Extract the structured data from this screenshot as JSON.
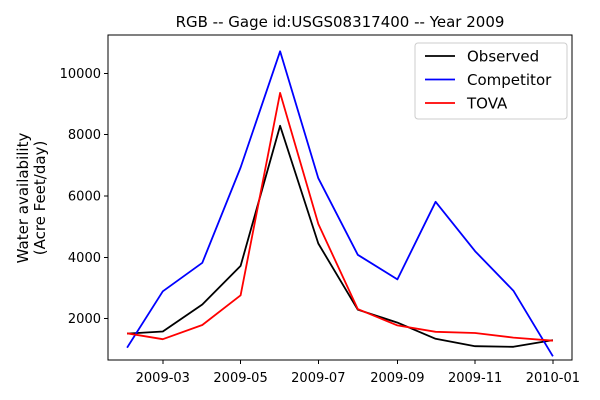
{
  "chart_data": {
    "type": "line",
    "title": "RGB -- Gage id:USGS08317400 -- Year 2009",
    "ylabel_lines": [
      "Water availability",
      "(Acre Feet/day)"
    ],
    "xlabel": "",
    "x": [
      "2009-02",
      "2009-03",
      "2009-04",
      "2009-05",
      "2009-06",
      "2009-07",
      "2009-08",
      "2009-09",
      "2009-10",
      "2009-11",
      "2009-12",
      "2010-01"
    ],
    "x_ticks": [
      "2009-03",
      "2009-05",
      "2009-07",
      "2009-09",
      "2009-11",
      "2010-01"
    ],
    "y_ticks": [
      2000,
      4000,
      6000,
      8000,
      10000
    ],
    "ylim": [
      650,
      11250
    ],
    "xlim": [
      "2009-01-17",
      "2010-01-16"
    ],
    "grid": false,
    "legend_position": "top-right",
    "series": [
      {
        "name": "Observed",
        "color": "#000000",
        "values": [
          1510,
          1580,
          2460,
          3720,
          8290,
          4450,
          2290,
          1870,
          1340,
          1100,
          1080,
          1300
        ]
      },
      {
        "name": "Competitor",
        "color": "#0000ff",
        "values": [
          1050,
          2890,
          3820,
          6930,
          10720,
          6580,
          4080,
          3280,
          5810,
          4200,
          2910,
          770
        ]
      },
      {
        "name": "TOVA",
        "color": "#ff0000",
        "values": [
          1520,
          1330,
          1790,
          2760,
          9360,
          5090,
          2310,
          1780,
          1570,
          1530,
          1380,
          1280
        ]
      }
    ]
  }
}
